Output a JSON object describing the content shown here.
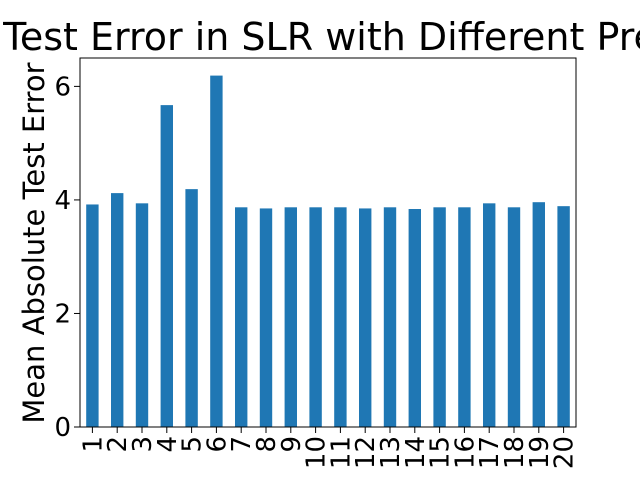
{
  "chart_data": {
    "type": "bar",
    "title": "Test Error in SLR with Different Pre",
    "xlabel": "",
    "ylabel": "Mean Absolute Test Error",
    "categories": [
      "1",
      "2",
      "3",
      "4",
      "5",
      "6",
      "7",
      "8",
      "9",
      "10",
      "11",
      "12",
      "13",
      "14",
      "15",
      "16",
      "17",
      "18",
      "19",
      "20"
    ],
    "values": [
      3.92,
      4.12,
      3.94,
      5.67,
      4.19,
      6.19,
      3.87,
      3.85,
      3.87,
      3.87,
      3.87,
      3.85,
      3.87,
      3.84,
      3.87,
      3.87,
      3.94,
      3.87,
      3.96,
      3.89
    ],
    "ylim": [
      0,
      6.5
    ],
    "yticks": [
      "0",
      "2",
      "4",
      "6"
    ],
    "ytick_values": [
      0,
      2,
      4,
      6
    ],
    "bar_color": "#1f77b4",
    "grid": false,
    "legend": "none"
  }
}
